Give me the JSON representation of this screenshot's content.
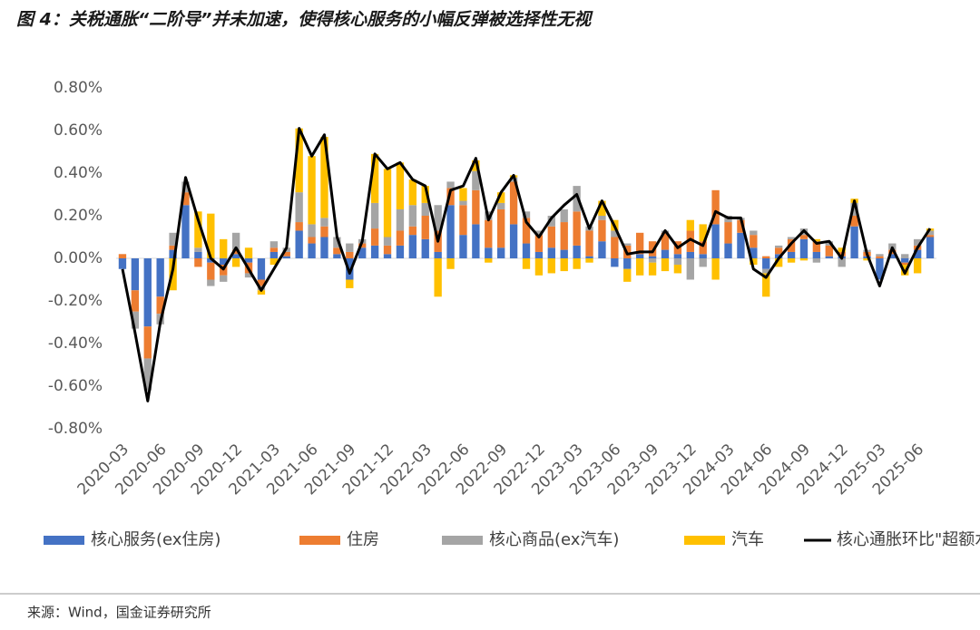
{
  "chart_data": {
    "type": "stacked-bar-line",
    "title": "图 4：关税通胀“二阶导”并未加速，使得核心服务的小幅反弹被选择性无视",
    "source": "来源：Wind，国金证券研究所",
    "categories": [
      "2020-03",
      null,
      null,
      "2020-06",
      null,
      null,
      "2020-09",
      null,
      null,
      "2020-12",
      null,
      null,
      "2021-03",
      null,
      null,
      "2021-06",
      null,
      null,
      "2021-09",
      null,
      null,
      "2021-12",
      null,
      null,
      "2022-03",
      null,
      null,
      "2022-06",
      null,
      null,
      "2022-09",
      null,
      null,
      "2022-12",
      null,
      null,
      "2023-03",
      null,
      null,
      "2023-06",
      null,
      null,
      "2023-09",
      null,
      null,
      "2023-12",
      null,
      null,
      "2024-03",
      null,
      null,
      "2024-06",
      null,
      null,
      "2024-09",
      null,
      null,
      "2024-12",
      null,
      null,
      "2025-03",
      null,
      null,
      "2025-06",
      null
    ],
    "ylim": [
      -0.8,
      0.8
    ],
    "yticks": [
      {
        "value": 0.8,
        "label": "0.80%"
      },
      {
        "value": 0.6,
        "label": "0.60%"
      },
      {
        "value": 0.4,
        "label": "0.40%"
      },
      {
        "value": 0.2,
        "label": "0.20%"
      },
      {
        "value": 0,
        "label": "0.00%"
      },
      {
        "value": -0.2,
        "label": "-0.20%"
      },
      {
        "value": -0.4,
        "label": "-0.40%"
      },
      {
        "value": -0.6,
        "label": "-0.60%"
      },
      {
        "value": -0.8,
        "label": "-0.80%"
      }
    ],
    "series": [
      {
        "name": "核心服务(ex住房)",
        "color": "#4472c4",
        "kind": "bar",
        "values": [
          -0.05,
          -0.15,
          -0.32,
          -0.18,
          0.04,
          0.25,
          0.03,
          -0.02,
          -0.03,
          0.02,
          -0.02,
          -0.1,
          0.03,
          0.01,
          0.13,
          0.07,
          0.1,
          0.02,
          -0.1,
          0.05,
          0.06,
          0.02,
          0.06,
          0.11,
          0.09,
          0.03,
          0.25,
          0.11,
          0.16,
          0.05,
          0.05,
          0.16,
          0.07,
          0.03,
          0.05,
          0.04,
          0.06,
          0.01,
          0.08,
          -0.04,
          -0.05,
          0.02,
          0.01,
          0.04,
          0.02,
          0.03,
          0.02,
          0.16,
          0.07,
          0.12,
          0.05,
          -0.05,
          0.02,
          0.03,
          0.09,
          0.03,
          0.01,
          0.01,
          0.15,
          0.01,
          -0.1,
          0.02,
          -0.02,
          0.04,
          0.1
        ]
      },
      {
        "name": "住房",
        "color": "#ed7d31",
        "kind": "bar",
        "values": [
          0.02,
          -0.1,
          -0.15,
          -0.08,
          0.02,
          0.06,
          -0.04,
          -0.08,
          -0.05,
          0.02,
          -0.05,
          -0.03,
          0.02,
          0.02,
          0.04,
          0.03,
          0.05,
          0.03,
          0.03,
          0.02,
          0.08,
          0.04,
          0.07,
          0.04,
          0.11,
          0.1,
          0.08,
          0.14,
          0.16,
          0.13,
          0.18,
          0.2,
          0.12,
          0.08,
          0.1,
          0.13,
          0.16,
          0.12,
          0.1,
          0.1,
          0.06,
          0.1,
          0.07,
          0.08,
          0.06,
          0.1,
          0.06,
          0.16,
          0.1,
          0.06,
          0.06,
          0.01,
          0.03,
          0.06,
          0.02,
          0.05,
          0.05,
          0.02,
          0.05,
          0.02,
          0.01,
          0.02,
          -0.01,
          0.02,
          0.01
        ]
      },
      {
        "name": "核心商品(ex汽车)",
        "color": "#a5a5a5",
        "kind": "bar",
        "values": [
          0,
          -0.08,
          -0.15,
          -0.05,
          0.06,
          0.05,
          0.02,
          -0.03,
          -0.03,
          0.08,
          -0.02,
          -0.02,
          0.03,
          0.02,
          0.14,
          0.06,
          0.04,
          0.05,
          0.04,
          0.02,
          0.12,
          0.04,
          0.1,
          0.1,
          0.06,
          0.12,
          0.03,
          0.02,
          0.09,
          0.04,
          0.03,
          0.02,
          0.03,
          0.02,
          0.05,
          0.06,
          0.12,
          0.02,
          0.02,
          0.03,
          0.01,
          0,
          -0.02,
          0.01,
          -0.03,
          -0.1,
          -0.04,
          0,
          0.03,
          0.01,
          0.02,
          -0.02,
          0.01,
          0.01,
          0.03,
          -0.02,
          0.02,
          -0.04,
          0.06,
          0.01,
          0.01,
          0.03,
          0.02,
          0.03,
          0.02
        ]
      },
      {
        "name": "汽车",
        "color": "#ffc000",
        "kind": "bar",
        "values": [
          0,
          0,
          0,
          0,
          -0.15,
          0,
          0.17,
          0.21,
          0.09,
          -0.04,
          0.05,
          -0.02,
          -0.03,
          0,
          0.3,
          0.32,
          0.38,
          0,
          -0.04,
          0,
          0.23,
          0.32,
          0.22,
          0.12,
          0.08,
          -0.18,
          -0.05,
          0.06,
          0.05,
          -0.02,
          0.05,
          0.01,
          -0.05,
          -0.08,
          -0.07,
          -0.06,
          -0.05,
          -0.02,
          0.07,
          0.05,
          -0.06,
          -0.08,
          -0.06,
          -0.06,
          -0.04,
          0.05,
          0.08,
          -0.1,
          0,
          0,
          -0.03,
          -0.11,
          -0.04,
          -0.02,
          -0.01,
          0.01,
          0,
          0.02,
          0.02,
          -0.01,
          0,
          0,
          -0.05,
          -0.07,
          0.01
        ]
      },
      {
        "name": "核心通胀环比\"超额水平\"",
        "color": "#000000",
        "kind": "line",
        "values": [
          -0.05,
          -0.35,
          -0.67,
          -0.3,
          -0.05,
          0.38,
          0.18,
          0,
          -0.05,
          0.05,
          -0.05,
          -0.15,
          -0.05,
          0.05,
          0.61,
          0.48,
          0.58,
          0.1,
          -0.07,
          0.08,
          0.49,
          0.42,
          0.45,
          0.37,
          0.34,
          0.08,
          0.32,
          0.34,
          0.47,
          0.18,
          0.31,
          0.39,
          0.17,
          0.1,
          0.19,
          0.25,
          0.3,
          0.14,
          0.27,
          0.15,
          0.02,
          0.03,
          0.03,
          0.13,
          0.05,
          0.09,
          0.06,
          0.22,
          0.19,
          0.19,
          -0.05,
          -0.09,
          0,
          0.07,
          0.13,
          0.07,
          0.08,
          0,
          0.27,
          0.02,
          -0.13,
          0.05,
          -0.07,
          0.05,
          0.14
        ]
      }
    ]
  }
}
